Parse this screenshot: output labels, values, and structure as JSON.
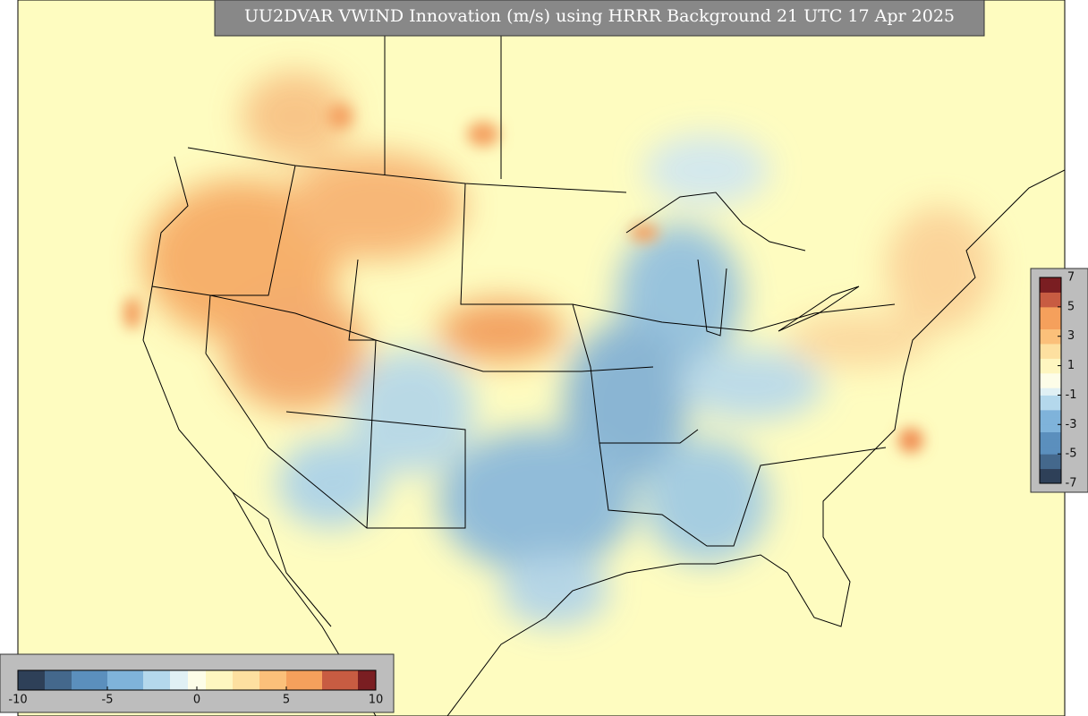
{
  "title": "UU2DVAR VWIND Innovation (m/s) using HRRR Background 21 UTC 17 Apr 2025",
  "colorbar_right": {
    "lim": [
      -7,
      7
    ],
    "ticks": [
      7,
      5,
      3,
      1,
      -1,
      -3,
      -5,
      -7
    ]
  },
  "colorbar_bottom": {
    "lim": [
      -10,
      10
    ],
    "ticks": [
      -10,
      -5,
      0,
      5,
      10
    ]
  }
}
